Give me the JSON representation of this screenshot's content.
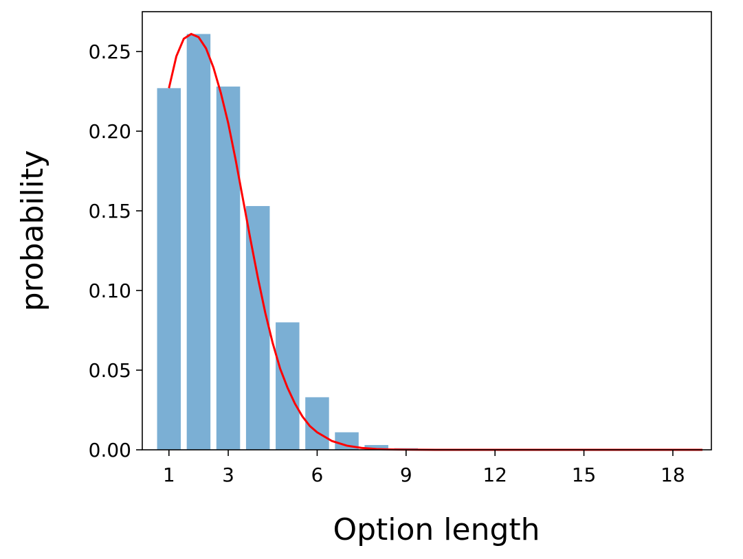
{
  "chart_data": {
    "type": "bar",
    "title": "",
    "xlabel": "Option length",
    "ylabel": "probability",
    "xlim": [
      0.1,
      19.3
    ],
    "ylim": [
      0,
      0.275
    ],
    "xticks": [
      1,
      3,
      6,
      9,
      12,
      15,
      18
    ],
    "xtick_labels": [
      "1",
      "3",
      "6",
      "9",
      "12",
      "15",
      "18"
    ],
    "yticks": [
      0.0,
      0.05,
      0.1,
      0.15,
      0.2,
      0.25
    ],
    "ytick_labels": [
      "0.00",
      "0.05",
      "0.10",
      "0.15",
      "0.20",
      "0.25"
    ],
    "grid": false,
    "bar_color": "#7bafd4",
    "line_color": "#ff0000",
    "bars": {
      "x": [
        1,
        2,
        3,
        4,
        5,
        6,
        7,
        8,
        9,
        10,
        11,
        12,
        13,
        14,
        15,
        16,
        17,
        18,
        19
      ],
      "values": [
        0.227,
        0.261,
        0.228,
        0.153,
        0.08,
        0.033,
        0.011,
        0.003,
        0.001,
        0.0002,
        0.0001,
        0,
        0,
        0,
        0,
        0,
        0,
        0,
        0
      ]
    },
    "curve": {
      "x": [
        1.0,
        1.25,
        1.5,
        1.75,
        2.0,
        2.25,
        2.5,
        2.75,
        3.0,
        3.25,
        3.5,
        3.75,
        4.0,
        4.25,
        4.5,
        4.75,
        5.0,
        5.25,
        5.5,
        5.75,
        6.0,
        6.5,
        7.0,
        7.5,
        8.0,
        8.5,
        9.0,
        10.0,
        11.0,
        12.0,
        13.0,
        14.0,
        15.0,
        16.0,
        17.0,
        18.0,
        19.0
      ],
      "y": [
        0.227,
        0.247,
        0.258,
        0.261,
        0.259,
        0.252,
        0.24,
        0.224,
        0.205,
        0.182,
        0.157,
        0.132,
        0.108,
        0.086,
        0.067,
        0.051,
        0.039,
        0.029,
        0.021,
        0.015,
        0.011,
        0.0055,
        0.0026,
        0.0012,
        0.0005,
        0.0002,
        0.0001,
        0,
        0,
        0,
        0,
        0,
        0,
        0,
        0,
        0,
        0
      ]
    }
  }
}
